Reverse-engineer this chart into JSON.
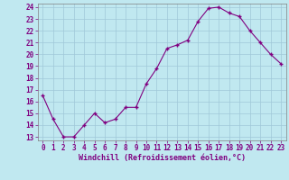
{
  "x": [
    0,
    1,
    2,
    3,
    4,
    5,
    6,
    7,
    8,
    9,
    10,
    11,
    12,
    13,
    14,
    15,
    16,
    17,
    18,
    19,
    20,
    21,
    22,
    23
  ],
  "y": [
    16.5,
    14.5,
    13.0,
    13.0,
    14.0,
    15.0,
    14.2,
    14.5,
    15.5,
    15.5,
    17.5,
    18.8,
    20.5,
    20.8,
    21.2,
    22.8,
    23.9,
    24.0,
    23.5,
    23.2,
    22.0,
    21.0,
    20.0,
    19.2
  ],
  "xlabel": "Windchill (Refroidissement éolien,°C)",
  "ylim_min": 13,
  "ylim_max": 24,
  "xlim_min": 0,
  "xlim_max": 23,
  "yticks": [
    13,
    14,
    15,
    16,
    17,
    18,
    19,
    20,
    21,
    22,
    23,
    24
  ],
  "xticks": [
    0,
    1,
    2,
    3,
    4,
    5,
    6,
    7,
    8,
    9,
    10,
    11,
    12,
    13,
    14,
    15,
    16,
    17,
    18,
    19,
    20,
    21,
    22,
    23
  ],
  "line_color": "#800080",
  "marker": "+",
  "marker_size": 3,
  "linewidth": 0.8,
  "bg_color": "#c0e8f0",
  "grid_color": "#a0c8d8",
  "tick_fontsize": 5.5,
  "xlabel_fontsize": 6.0
}
